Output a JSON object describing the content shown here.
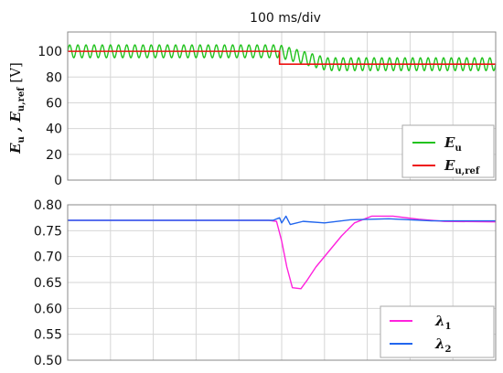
{
  "chart_data": [
    {
      "type": "line",
      "title": "100 ms/div",
      "ylabel": "E_u , E_u,ref [V]",
      "ylabel_parts": {
        "e1": "E",
        "s1": "u",
        "sep": " , ",
        "e2": "E",
        "s2": "u,ref",
        "unit": " [V]"
      },
      "xlim": [
        0,
        1
      ],
      "ylim": [
        0,
        115
      ],
      "yticks": [
        "0",
        "20",
        "40",
        "60",
        "80",
        "100"
      ],
      "grid": true,
      "legend_position": "bottom-right",
      "series": [
        {
          "name": "E_u",
          "legend": {
            "base": "E",
            "sub": "u"
          },
          "color": "#22c21e",
          "description": "sinusoidal ripple ~100 V ±5 V before step, settling ~90 V ±5 V after",
          "segments": [
            {
              "x_start": 0.0,
              "x_end": 0.495,
              "center": 100,
              "amplitude": 5,
              "cycles": 26
            },
            {
              "x_start": 0.495,
              "x_end": 1.0,
              "center_from": 100,
              "center_to": 90,
              "amplitude": 5,
              "cycles": 28
            }
          ]
        },
        {
          "name": "E_u,ref",
          "legend": {
            "base": "E",
            "sub": "u,ref"
          },
          "color": "#ee1111",
          "points": [
            [
              0.0,
              100
            ],
            [
              0.495,
              100
            ],
            [
              0.495,
              90
            ],
            [
              1.0,
              90
            ]
          ]
        }
      ]
    },
    {
      "type": "line",
      "xlim": [
        0,
        1
      ],
      "ylim": [
        0.5,
        0.8
      ],
      "yticks": [
        "0.50",
        "0.55",
        "0.60",
        "0.65",
        "0.70",
        "0.75",
        "0.80"
      ],
      "grid": true,
      "legend_position": "bottom-right",
      "series": [
        {
          "name": "λ1",
          "legend": {
            "base": "λ",
            "sub": "1"
          },
          "color": "#ff22dd",
          "points": [
            [
              0.0,
              0.77
            ],
            [
              0.47,
              0.77
            ],
            [
              0.488,
              0.768
            ],
            [
              0.5,
              0.73
            ],
            [
              0.512,
              0.68
            ],
            [
              0.525,
              0.64
            ],
            [
              0.545,
              0.638
            ],
            [
              0.56,
              0.655
            ],
            [
              0.58,
              0.68
            ],
            [
              0.61,
              0.71
            ],
            [
              0.64,
              0.74
            ],
            [
              0.67,
              0.765
            ],
            [
              0.71,
              0.778
            ],
            [
              0.76,
              0.778
            ],
            [
              0.82,
              0.772
            ],
            [
              0.88,
              0.768
            ],
            [
              1.0,
              0.767
            ]
          ]
        },
        {
          "name": "λ2",
          "legend": {
            "base": "λ",
            "sub": "2"
          },
          "color": "#2266ee",
          "points": [
            [
              0.0,
              0.77
            ],
            [
              0.48,
              0.77
            ],
            [
              0.495,
              0.775
            ],
            [
              0.5,
              0.765
            ],
            [
              0.51,
              0.778
            ],
            [
              0.52,
              0.762
            ],
            [
              0.55,
              0.768
            ],
            [
              0.6,
              0.765
            ],
            [
              0.66,
              0.771
            ],
            [
              0.75,
              0.773
            ],
            [
              0.85,
              0.769
            ],
            [
              1.0,
              0.769
            ]
          ]
        }
      ]
    }
  ]
}
